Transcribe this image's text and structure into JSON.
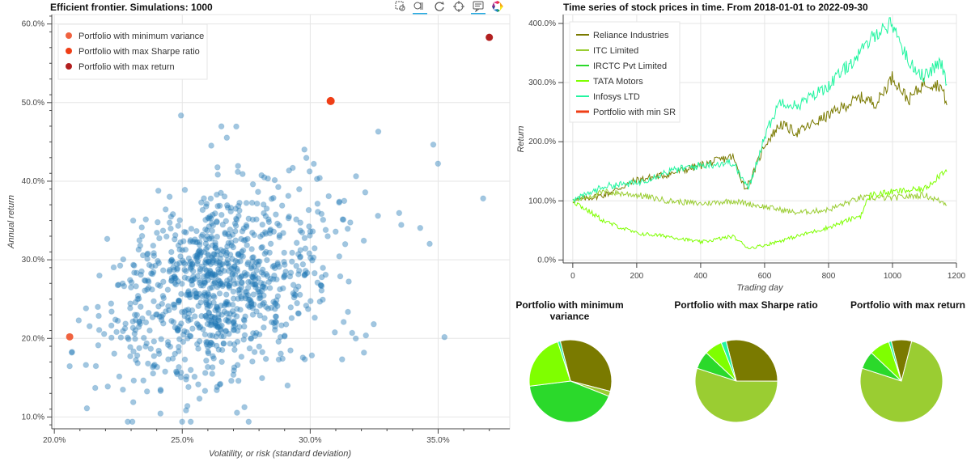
{
  "scatter": {
    "title": "Efficient frontier. Simulations: 1000",
    "xlabel": "Volatility, or risk (standard deviation)",
    "ylabel": "Annual return",
    "legend": [
      {
        "label": "Portfolio with minimum variance",
        "color": "#f0623f"
      },
      {
        "label": "Portfolio with max Sharpe ratio",
        "color": "#ef3e16"
      },
      {
        "label": "Portfolio with max return",
        "color": "#b21f1f"
      }
    ],
    "x_ticks": [
      "20.0%",
      "25.0%",
      "30.0%",
      "35.0%"
    ],
    "y_ticks": [
      "10.0%",
      "20.0%",
      "30.0%",
      "40.0%",
      "50.0%",
      "60.0%"
    ]
  },
  "toolbar": {
    "icons": [
      "box-zoom-icon",
      "wheel-zoom-icon",
      "reset-icon",
      "crosshair-icon",
      "hover-icon",
      "bokeh-logo-icon"
    ]
  },
  "timeseries": {
    "title": "Time series of stock prices in time. From 2018-01-01 to 2022-09-30",
    "xlabel": "Trading day",
    "ylabel": "Return",
    "x_ticks": [
      "0",
      "200",
      "400",
      "600",
      "800",
      "1000",
      "1200"
    ],
    "y_ticks": [
      "0.0%",
      "100.0%",
      "200.0%",
      "300.0%",
      "400.0%"
    ],
    "legend": [
      {
        "label": "Reliance Industries",
        "color": "#7a7a00"
      },
      {
        "label": "ITC Limited",
        "color": "#9acd32"
      },
      {
        "label": "IRCTC Pvt Limited",
        "color": "#2bd92b"
      },
      {
        "label": "TATA Motors",
        "color": "#7fff00"
      },
      {
        "label": "Infosys LTD",
        "color": "#22f5a0"
      },
      {
        "label": "Portfolio with min SR",
        "color": "#ef3e16"
      }
    ]
  },
  "pies": [
    {
      "title": "Portfolio with minimum variance"
    },
    {
      "title": "Portfolio with max Sharpe ratio"
    },
    {
      "title": "Portfolio with max return"
    }
  ],
  "chart_data": [
    {
      "type": "scatter",
      "title": "Efficient frontier. Simulations: 1000",
      "xlabel": "Volatility, or risk (standard deviation)",
      "ylabel": "Annual return",
      "xlim": [
        19.9,
        37.8
      ],
      "ylim": [
        8.5,
        61.2
      ],
      "grid": true,
      "legend_position": "top-left",
      "cloud": {
        "n": 1000,
        "x_center": 25.5,
        "y_center": 26.0,
        "x_sd": 2.8,
        "y_sd": 6.0,
        "x_range": [
          20.6,
          36.8
        ],
        "y_range": [
          9.4,
          51.3
        ],
        "color": "#1f77b4"
      },
      "highlight": [
        {
          "name": "Portfolio with minimum variance",
          "x": 20.6,
          "y": 20.2
        },
        {
          "name": "Portfolio with max Sharpe ratio",
          "x": 30.8,
          "y": 50.2
        },
        {
          "name": "Portfolio with max return",
          "x": 37.0,
          "y": 58.3
        }
      ]
    },
    {
      "type": "line",
      "title": "Time series of stock prices in time. From 2018-01-01 to 2022-09-30",
      "xlabel": "Trading day",
      "ylabel": "Return",
      "xlim": [
        -30,
        1200
      ],
      "ylim": [
        -5,
        415
      ],
      "grid": true,
      "legend_position": "top-left",
      "series": [
        {
          "name": "Reliance Industries",
          "x": [
            0,
            100,
            200,
            300,
            400,
            500,
            540,
            560,
            600,
            650,
            700,
            800,
            900,
            950,
            1000,
            1050,
            1100,
            1150,
            1170
          ],
          "y": [
            100,
            110,
            135,
            145,
            160,
            175,
            120,
            140,
            195,
            230,
            215,
            245,
            275,
            265,
            310,
            270,
            300,
            295,
            265
          ]
        },
        {
          "name": "ITC Limited",
          "x": [
            0,
            100,
            200,
            300,
            400,
            500,
            600,
            700,
            800,
            900,
            1000,
            1100,
            1170
          ],
          "y": [
            100,
            115,
            110,
            100,
            95,
            100,
            90,
            80,
            85,
            105,
            105,
            110,
            95
          ]
        },
        {
          "name": "IRCTC Pvt Limited",
          "x": [
            0,
            100,
            200,
            300,
            400,
            500,
            600,
            700,
            800,
            900,
            1000,
            1100,
            1170
          ],
          "y": [
            100,
            100,
            100,
            100,
            100,
            100,
            100,
            100,
            100,
            100,
            100,
            100,
            100
          ]
        },
        {
          "name": "TATA Motors",
          "x": [
            0,
            100,
            200,
            300,
            400,
            500,
            550,
            600,
            700,
            800,
            900,
            930,
            1000,
            1100,
            1170
          ],
          "y": [
            100,
            65,
            45,
            40,
            30,
            40,
            20,
            25,
            40,
            55,
            75,
            110,
            115,
            120,
            155
          ]
        },
        {
          "name": "Infosys LTD",
          "x": [
            0,
            100,
            200,
            300,
            400,
            500,
            550,
            600,
            650,
            700,
            800,
            900,
            950,
            1000,
            1050,
            1100,
            1150,
            1170
          ],
          "y": [
            100,
            125,
            130,
            150,
            160,
            165,
            120,
            210,
            270,
            260,
            295,
            350,
            385,
            400,
            335,
            310,
            335,
            300
          ]
        }
      ]
    },
    {
      "type": "pie",
      "title": "Portfolio with minimum variance",
      "labels": [
        "Reliance Industries",
        "ITC Limited",
        "IRCTC Pvt Limited",
        "TATA Motors",
        "Infosys LTD"
      ],
      "values": [
        0.33,
        0.02,
        0.42,
        0.22,
        0.01
      ]
    },
    {
      "type": "pie",
      "title": "Portfolio with max Sharpe ratio",
      "labels": [
        "Reliance Industries",
        "ITC Limited",
        "IRCTC Pvt Limited",
        "TATA Motors",
        "Infosys LTD"
      ],
      "values": [
        0.29,
        0.55,
        0.07,
        0.07,
        0.02
      ]
    },
    {
      "type": "pie",
      "title": "Portfolio with max return",
      "labels": [
        "Reliance Industries",
        "ITC Limited",
        "IRCTC Pvt Limited",
        "TATA Motors",
        "Infosys LTD"
      ],
      "values": [
        0.08,
        0.76,
        0.07,
        0.08,
        0.01
      ]
    }
  ]
}
